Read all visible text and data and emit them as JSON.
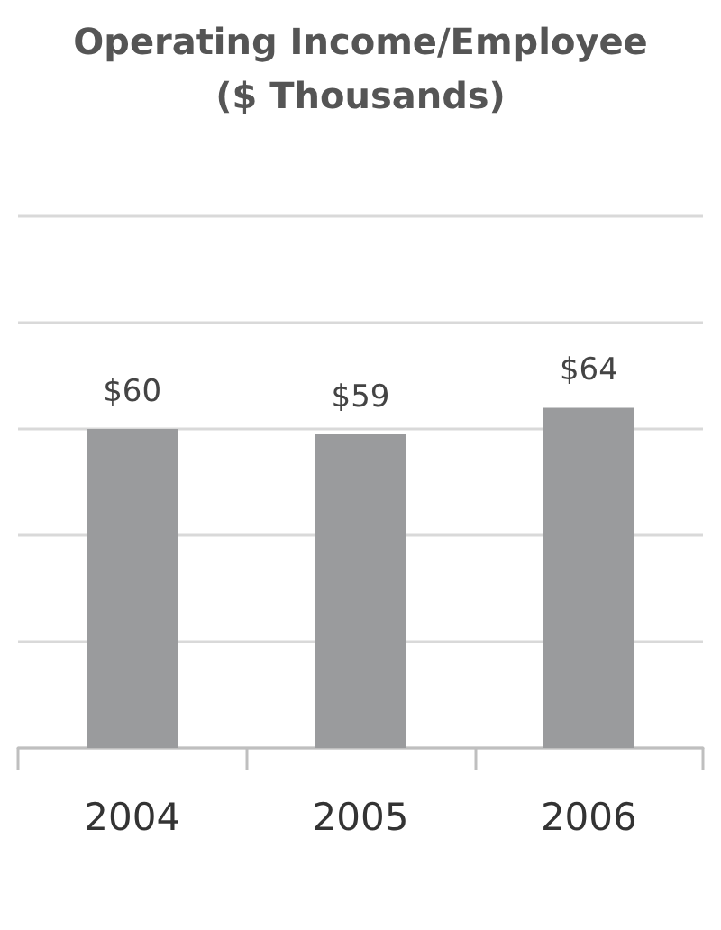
{
  "chart_data": {
    "type": "bar",
    "title": "Operating Income/Employee",
    "subtitle": "($ Thousands)",
    "categories": [
      "2004",
      "2005",
      "2006"
    ],
    "values": [
      60,
      59,
      64
    ],
    "value_labels": [
      "$60",
      "$59",
      "$64"
    ],
    "color": "#9a9b9d",
    "ylim": [
      0,
      100
    ],
    "yticks": [
      0,
      20,
      40,
      60,
      80,
      100
    ],
    "grid": "y",
    "tick_labels": "x"
  }
}
